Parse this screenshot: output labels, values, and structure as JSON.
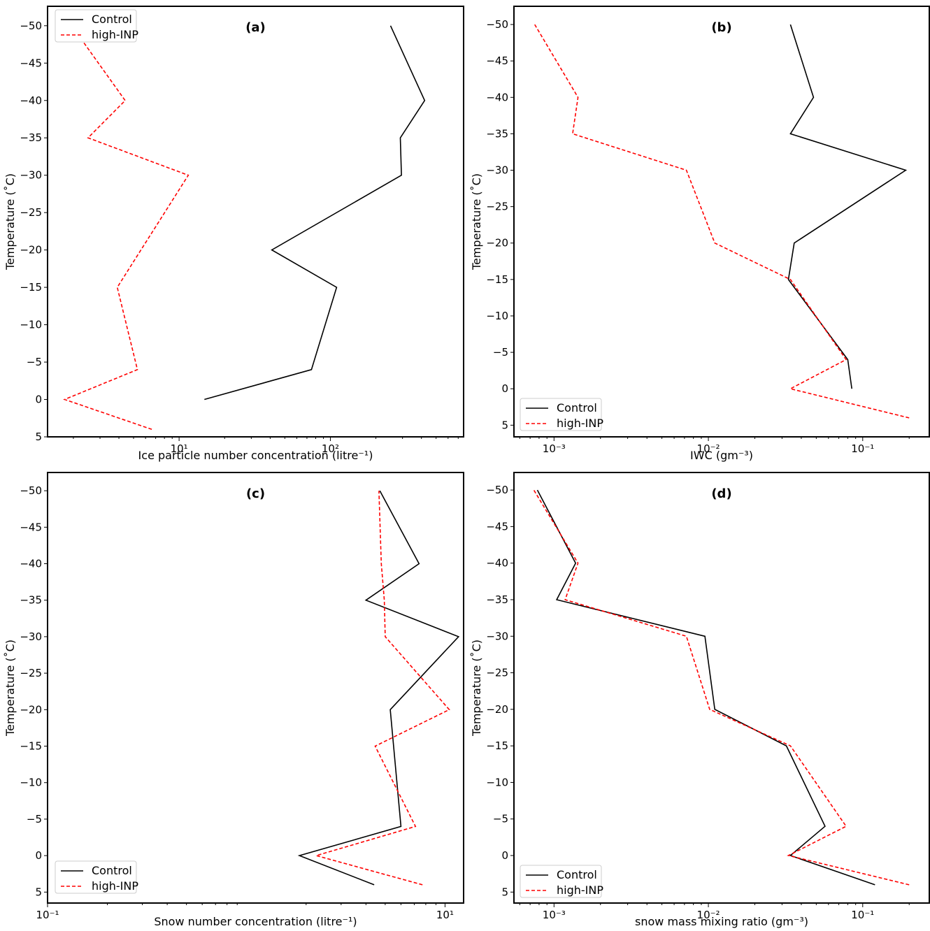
{
  "chart_data": [
    {
      "type": "line",
      "panel_label": "(a)",
      "xlabel": "Ice particle number concentration (litre⁻¹)",
      "ylabel": "Temperature (˚C)",
      "xscale": "log",
      "xlim": [
        1.35,
        760
      ],
      "ylim": [
        5,
        -52.6
      ],
      "xticks": [
        {
          "value": 10,
          "label": "10¹"
        },
        {
          "value": 100,
          "label": "10²"
        }
      ],
      "yticks": [
        -50,
        -45,
        -40,
        -35,
        -30,
        -25,
        -20,
        -15,
        -10,
        -5,
        0,
        5
      ],
      "legend_position": "top-left",
      "series": [
        {
          "name": "Control",
          "color": "#000000",
          "dash": "solid",
          "y": [
            0,
            -4,
            -15,
            -20,
            -30,
            -35,
            -40,
            -50
          ],
          "x": [
            14.7,
            75,
            110,
            41,
            295,
            290,
            420,
            250
          ]
        },
        {
          "name": "high-INP",
          "color": "#ff0000",
          "dash": "dashed",
          "y": [
            4,
            0,
            -4,
            -15,
            -30,
            -35,
            -40,
            -50
          ],
          "x": [
            6.6,
            1.75,
            5.3,
            3.9,
            11.5,
            2.5,
            4.4,
            1.95
          ]
        }
      ]
    },
    {
      "type": "line",
      "panel_label": "(b)",
      "xlabel": "IWC (gm⁻³)",
      "ylabel": "Temperature (˚C)",
      "xscale": "log",
      "xlim": [
        0.00055,
        0.27
      ],
      "ylim": [
        6.6,
        -52.5
      ],
      "xticks": [
        {
          "value": 0.001,
          "label": "10⁻³"
        },
        {
          "value": 0.01,
          "label": "10⁻²"
        },
        {
          "value": 0.1,
          "label": "10⁻¹"
        }
      ],
      "yticks": [
        -50,
        -45,
        -40,
        -35,
        -30,
        -25,
        -20,
        -15,
        -10,
        -5,
        0,
        5
      ],
      "legend_position": "bottom-left",
      "series": [
        {
          "name": "Control",
          "color": "#000000",
          "dash": "solid",
          "y": [
            0,
            -4,
            -15,
            -20,
            -30,
            -35,
            -40,
            -50
          ],
          "x": [
            0.085,
            0.08,
            0.033,
            0.036,
            0.19,
            0.034,
            0.048,
            0.034
          ]
        },
        {
          "name": "high-INP",
          "color": "#ff0000",
          "dash": "dashed",
          "y": [
            4,
            0,
            -4,
            -15,
            -20,
            -30,
            -35,
            -40,
            -50
          ],
          "x": [
            0.2,
            0.034,
            0.078,
            0.034,
            0.011,
            0.0072,
            0.00132,
            0.00143,
            0.00075
          ]
        }
      ]
    },
    {
      "type": "line",
      "panel_label": "(c)",
      "xlabel": "Snow number concentration (litre⁻¹)",
      "ylabel": "Temperature (˚C)",
      "xscale": "log",
      "xlim": [
        0.1,
        12.4
      ],
      "ylim": [
        6.5,
        -52.5
      ],
      "xticks": [
        {
          "value": 0.1,
          "label": "10⁻¹"
        },
        {
          "value": 10,
          "label": "10¹"
        }
      ],
      "yticks": [
        -50,
        -45,
        -40,
        -35,
        -30,
        -25,
        -20,
        -15,
        -10,
        -5,
        0,
        5
      ],
      "legend_position": "bottom-left",
      "series": [
        {
          "name": "Control",
          "color": "#000000",
          "dash": "solid",
          "y": [
            4,
            0,
            -4,
            -20,
            -30,
            -35,
            -40,
            -50
          ],
          "x": [
            4.4,
            1.85,
            6.0,
            5.3,
            11.7,
            4.0,
            7.4,
            4.7
          ]
        },
        {
          "name": "high-INP",
          "color": "#ff0000",
          "dash": "dashed",
          "y": [
            4,
            0,
            -4,
            -15,
            -20,
            -30,
            -35,
            -40,
            -50
          ],
          "x": [
            7.7,
            2.25,
            7.1,
            4.45,
            10.5,
            5.0,
            4.95,
            4.78,
            4.65
          ]
        }
      ]
    },
    {
      "type": "line",
      "panel_label": "(d)",
      "xlabel": "snow mass mixing ratio (gm⁻³)",
      "ylabel": "Temperature (˚C)",
      "xscale": "log",
      "xlim": [
        0.00055,
        0.27
      ],
      "ylim": [
        6.5,
        -52.4
      ],
      "xticks": [
        {
          "value": 0.001,
          "label": "10⁻³"
        },
        {
          "value": 0.01,
          "label": "10⁻²"
        },
        {
          "value": 0.1,
          "label": "10⁻¹"
        }
      ],
      "yticks": [
        -50,
        -45,
        -40,
        -35,
        -30,
        -25,
        -20,
        -15,
        -10,
        -5,
        0,
        5
      ],
      "legend_position": "bottom-left",
      "series": [
        {
          "name": "Control",
          "color": "#000000",
          "dash": "solid",
          "y": [
            4,
            0,
            -4,
            -15,
            -20,
            -30,
            -35,
            -40,
            -50
          ],
          "x": [
            0.12,
            0.034,
            0.057,
            0.032,
            0.011,
            0.0095,
            0.00104,
            0.00138,
            0.00078
          ]
        },
        {
          "name": "high-INP",
          "color": "#ff0000",
          "dash": "dashed",
          "y": [
            4,
            0,
            -4,
            -15,
            -20,
            -30,
            -35,
            -40,
            -50
          ],
          "x": [
            0.2,
            0.033,
            0.078,
            0.034,
            0.0102,
            0.0072,
            0.00118,
            0.00143,
            0.00074
          ]
        }
      ]
    }
  ]
}
